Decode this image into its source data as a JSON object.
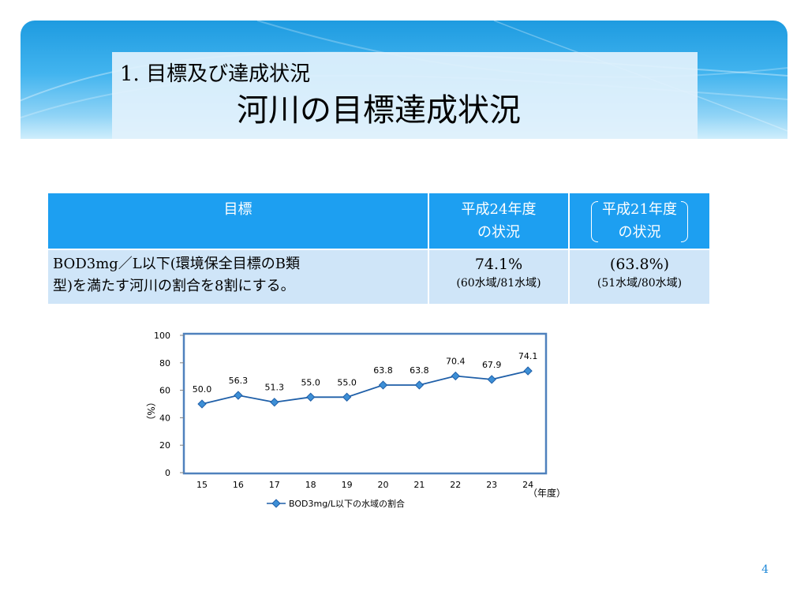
{
  "header": {
    "subtitle": "1. 目標及び達成状況",
    "title": "河川の目標達成状況"
  },
  "table": {
    "head": {
      "goal": "目標",
      "h24_line1": "平成24年度",
      "h24_line2": "の状況",
      "h21_line1": "平成21年度",
      "h21_line2": "の状況"
    },
    "row": {
      "goal_line1": "BOD3mg／L以下(環境保全目標のB類",
      "goal_line2": "型)を満たす河川の割合を8割にする。",
      "h24_value": "74.1%",
      "h24_detail": "(60水域/81水域)",
      "h21_value": "(63.8%)",
      "h21_detail": "(51水域/80水域)"
    }
  },
  "chart_data": {
    "type": "line",
    "categories": [
      "15",
      "16",
      "17",
      "18",
      "19",
      "20",
      "21",
      "22",
      "23",
      "24"
    ],
    "series": [
      {
        "name": "BOD3mg/L以下の水域の割合",
        "values": [
          50.0,
          56.3,
          51.3,
          55.0,
          55.0,
          63.8,
          63.8,
          70.4,
          67.9,
          74.1
        ],
        "labels": [
          "50.0",
          "56.3",
          "51.3",
          "55.0",
          "55.0",
          "63.8",
          "63.8",
          "70.4",
          "67.9",
          "74.1"
        ],
        "color": "#1f5fa8"
      }
    ],
    "yticks": [
      "0",
      "20",
      "40",
      "60",
      "80",
      "100"
    ],
    "ylim": [
      0,
      100
    ],
    "ylabel": "（%）",
    "xlabel": "（年度）",
    "grid": false,
    "legend": "bottom"
  },
  "footer": {
    "page_number": "4"
  },
  "colors": {
    "banner": "#1e9be0",
    "table_header": "#1d9ff1",
    "table_row": "#cfe5f8",
    "plot_border": "#4f81bd",
    "line": "#1f5fa8",
    "marker": "#3d8fd6"
  }
}
